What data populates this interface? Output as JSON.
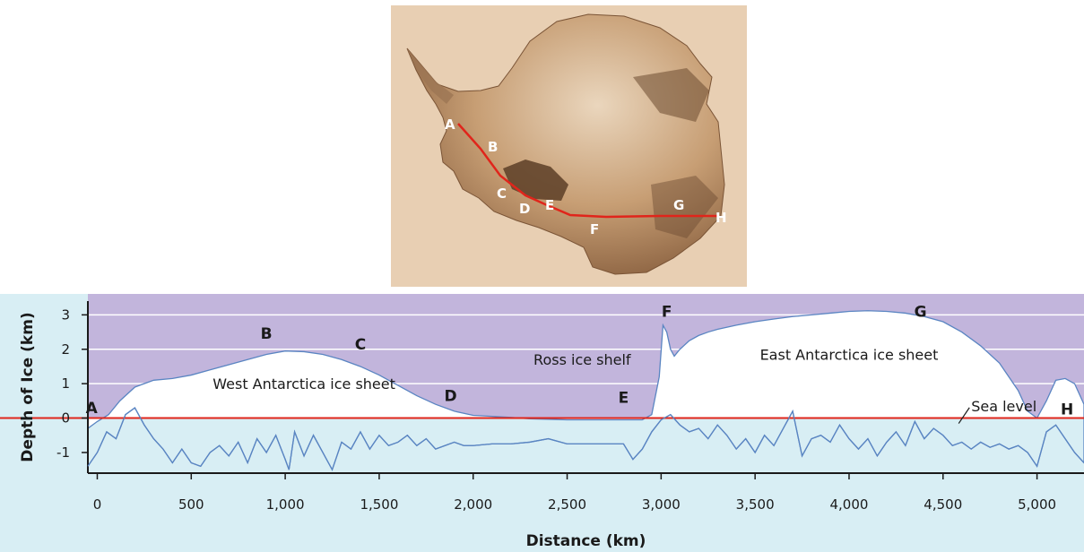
{
  "map": {
    "points": [
      "A",
      "B",
      "C",
      "D",
      "E",
      "F",
      "G",
      "H"
    ],
    "colors": {
      "land": "#c79e74",
      "shadow": "#6b4a30",
      "route": "#e0251b"
    }
  },
  "chart_data": {
    "type": "area",
    "xlabel": "Distance (km)",
    "ylabel": "Depth of Ice (km)",
    "xlim": [
      -50,
      5250
    ],
    "ylim": [
      -1.6,
      3.4
    ],
    "x_ticks": [
      0,
      500,
      1000,
      1500,
      2000,
      2500,
      3000,
      3500,
      4000,
      4500,
      5000
    ],
    "x_tick_labels": [
      "0",
      "500",
      "1,000",
      "1,500",
      "2,000",
      "2,500",
      "3,000",
      "3,500",
      "4,000",
      "4,500",
      "5,000"
    ],
    "y_ticks": [
      -1,
      0,
      1,
      2,
      3
    ],
    "y_tick_labels": [
      "-1",
      "0",
      "1",
      "2",
      "3"
    ],
    "grid": true,
    "sea_level": 0,
    "series": [
      {
        "name": "",
        "role": "ice-surface",
        "x": [
          -50,
          0,
          60,
          120,
          200,
          300,
          400,
          500,
          600,
          700,
          800,
          900,
          1000,
          1100,
          1200,
          1300,
          1400,
          1500,
          1600,
          1700,
          1800,
          1900,
          2000,
          2100,
          2200,
          2300,
          2500,
          2700,
          2900,
          2950,
          2990,
          3010,
          3030,
          3050,
          3070,
          3100,
          3150,
          3200,
          3250,
          3300,
          3400,
          3500,
          3600,
          3700,
          3800,
          3900,
          4000,
          4100,
          4200,
          4300,
          4400,
          4500,
          4600,
          4700,
          4800,
          4900,
          4950,
          5000,
          5050,
          5100,
          5150,
          5200,
          5250
        ],
        "y": [
          -0.3,
          -0.1,
          0.1,
          0.5,
          0.9,
          1.1,
          1.15,
          1.25,
          1.4,
          1.55,
          1.7,
          1.85,
          1.95,
          1.93,
          1.85,
          1.7,
          1.5,
          1.25,
          0.95,
          0.65,
          0.4,
          0.2,
          0.08,
          0.05,
          0.02,
          -0.02,
          -0.05,
          -0.05,
          -0.05,
          0.1,
          1.2,
          2.7,
          2.5,
          2.0,
          1.8,
          2.0,
          2.25,
          2.4,
          2.5,
          2.58,
          2.7,
          2.8,
          2.88,
          2.95,
          3.0,
          3.05,
          3.1,
          3.12,
          3.1,
          3.05,
          2.95,
          2.8,
          2.5,
          2.1,
          1.6,
          0.8,
          0.2,
          0.0,
          0.5,
          1.1,
          1.15,
          1.0,
          0.4
        ]
      },
      {
        "name": "",
        "role": "bedrock",
        "x": [
          -50,
          0,
          50,
          100,
          150,
          200,
          250,
          300,
          350,
          400,
          450,
          500,
          550,
          600,
          650,
          700,
          750,
          800,
          850,
          900,
          950,
          1000,
          1020,
          1050,
          1100,
          1150,
          1200,
          1250,
          1300,
          1350,
          1400,
          1450,
          1500,
          1550,
          1600,
          1650,
          1700,
          1750,
          1800,
          1850,
          1900,
          1950,
          2000,
          2100,
          2200,
          2300,
          2400,
          2500,
          2600,
          2700,
          2800,
          2850,
          2900,
          2950,
          3000,
          3050,
          3100,
          3150,
          3200,
          3250,
          3300,
          3350,
          3400,
          3450,
          3500,
          3550,
          3600,
          3650,
          3700,
          3750,
          3800,
          3850,
          3900,
          3950,
          4000,
          4050,
          4100,
          4150,
          4200,
          4250,
          4300,
          4350,
          4400,
          4450,
          4500,
          4550,
          4600,
          4650,
          4700,
          4750,
          4800,
          4850,
          4900,
          4950,
          5000,
          5050,
          5100,
          5150,
          5200,
          5250
        ],
        "y": [
          -1.4,
          -1.0,
          -0.4,
          -0.6,
          0.1,
          0.3,
          -0.2,
          -0.6,
          -0.9,
          -1.3,
          -0.9,
          -1.3,
          -1.4,
          -1.0,
          -0.8,
          -1.1,
          -0.7,
          -1.3,
          -0.6,
          -1.0,
          -0.5,
          -1.2,
          -1.5,
          -0.4,
          -1.1,
          -0.5,
          -1.0,
          -1.5,
          -0.7,
          -0.9,
          -0.4,
          -0.9,
          -0.5,
          -0.8,
          -0.7,
          -0.5,
          -0.8,
          -0.6,
          -0.9,
          -0.8,
          -0.7,
          -0.8,
          -0.8,
          -0.75,
          -0.75,
          -0.7,
          -0.6,
          -0.75,
          -0.75,
          -0.75,
          -0.75,
          -1.2,
          -0.9,
          -0.4,
          -0.05,
          0.1,
          -0.2,
          -0.4,
          -0.3,
          -0.6,
          -0.2,
          -0.5,
          -0.9,
          -0.6,
          -1.0,
          -0.5,
          -0.8,
          -0.3,
          0.2,
          -1.1,
          -0.6,
          -0.5,
          -0.7,
          -0.2,
          -0.6,
          -0.9,
          -0.6,
          -1.1,
          -0.7,
          -0.4,
          -0.8,
          -0.1,
          -0.6,
          -0.3,
          -0.5,
          -0.8,
          -0.7,
          -0.9,
          -0.7,
          -0.85,
          -0.75,
          -0.9,
          -0.8,
          -1.0,
          -1.4,
          -0.4,
          -0.2,
          -0.6,
          -1.0,
          -1.3
        ]
      }
    ],
    "point_labels": [
      {
        "text": "A",
        "x": -30,
        "y": 0.15
      },
      {
        "text": "B",
        "x": 900,
        "y": 2.3
      },
      {
        "text": "C",
        "x": 1400,
        "y": 2.0
      },
      {
        "text": "D",
        "x": 1880,
        "y": 0.5
      },
      {
        "text": "E",
        "x": 2800,
        "y": 0.45
      },
      {
        "text": "F",
        "x": 3030,
        "y": 2.95
      },
      {
        "text": "G",
        "x": 4380,
        "y": 2.95
      },
      {
        "text": "H",
        "x": 5160,
        "y": 0.1
      }
    ],
    "region_labels": [
      {
        "text": "West Antarctica ice sheet",
        "x": 1100,
        "y": 0.85
      },
      {
        "text": "Ross ice shelf",
        "x": 2580,
        "y": 1.55
      },
      {
        "text": "East Antarctica ice sheet",
        "x": 4000,
        "y": 1.7
      }
    ],
    "annotations": [
      {
        "text": "Sea level",
        "x": 4650,
        "y": 0.2
      }
    ],
    "colors": {
      "sky": "#c2b5dc",
      "grid": "#ffffff",
      "ice": "#ffffff",
      "ice_outline": "#5a85c2",
      "water": "#d8eef4",
      "sea_level": "#e0251b"
    }
  }
}
